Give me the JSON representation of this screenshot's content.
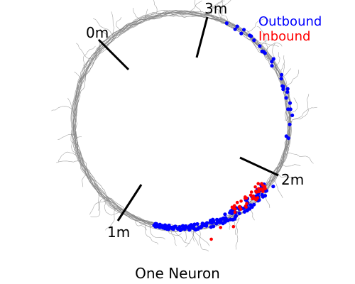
{
  "figure": {
    "caption": "One Neuron",
    "markers": [
      {
        "label": "0m"
      },
      {
        "label": "3m"
      },
      {
        "label": "2m"
      },
      {
        "label": "1m"
      }
    ],
    "legend": [
      {
        "label": "Outbound",
        "color": "#0000ff"
      },
      {
        "label": "Inbound",
        "color": "#ff0000"
      }
    ]
  },
  "colors": {
    "track": "#808080",
    "marker": "#000000",
    "outbound": "#0000ff",
    "inbound": "#ff0000"
  }
}
